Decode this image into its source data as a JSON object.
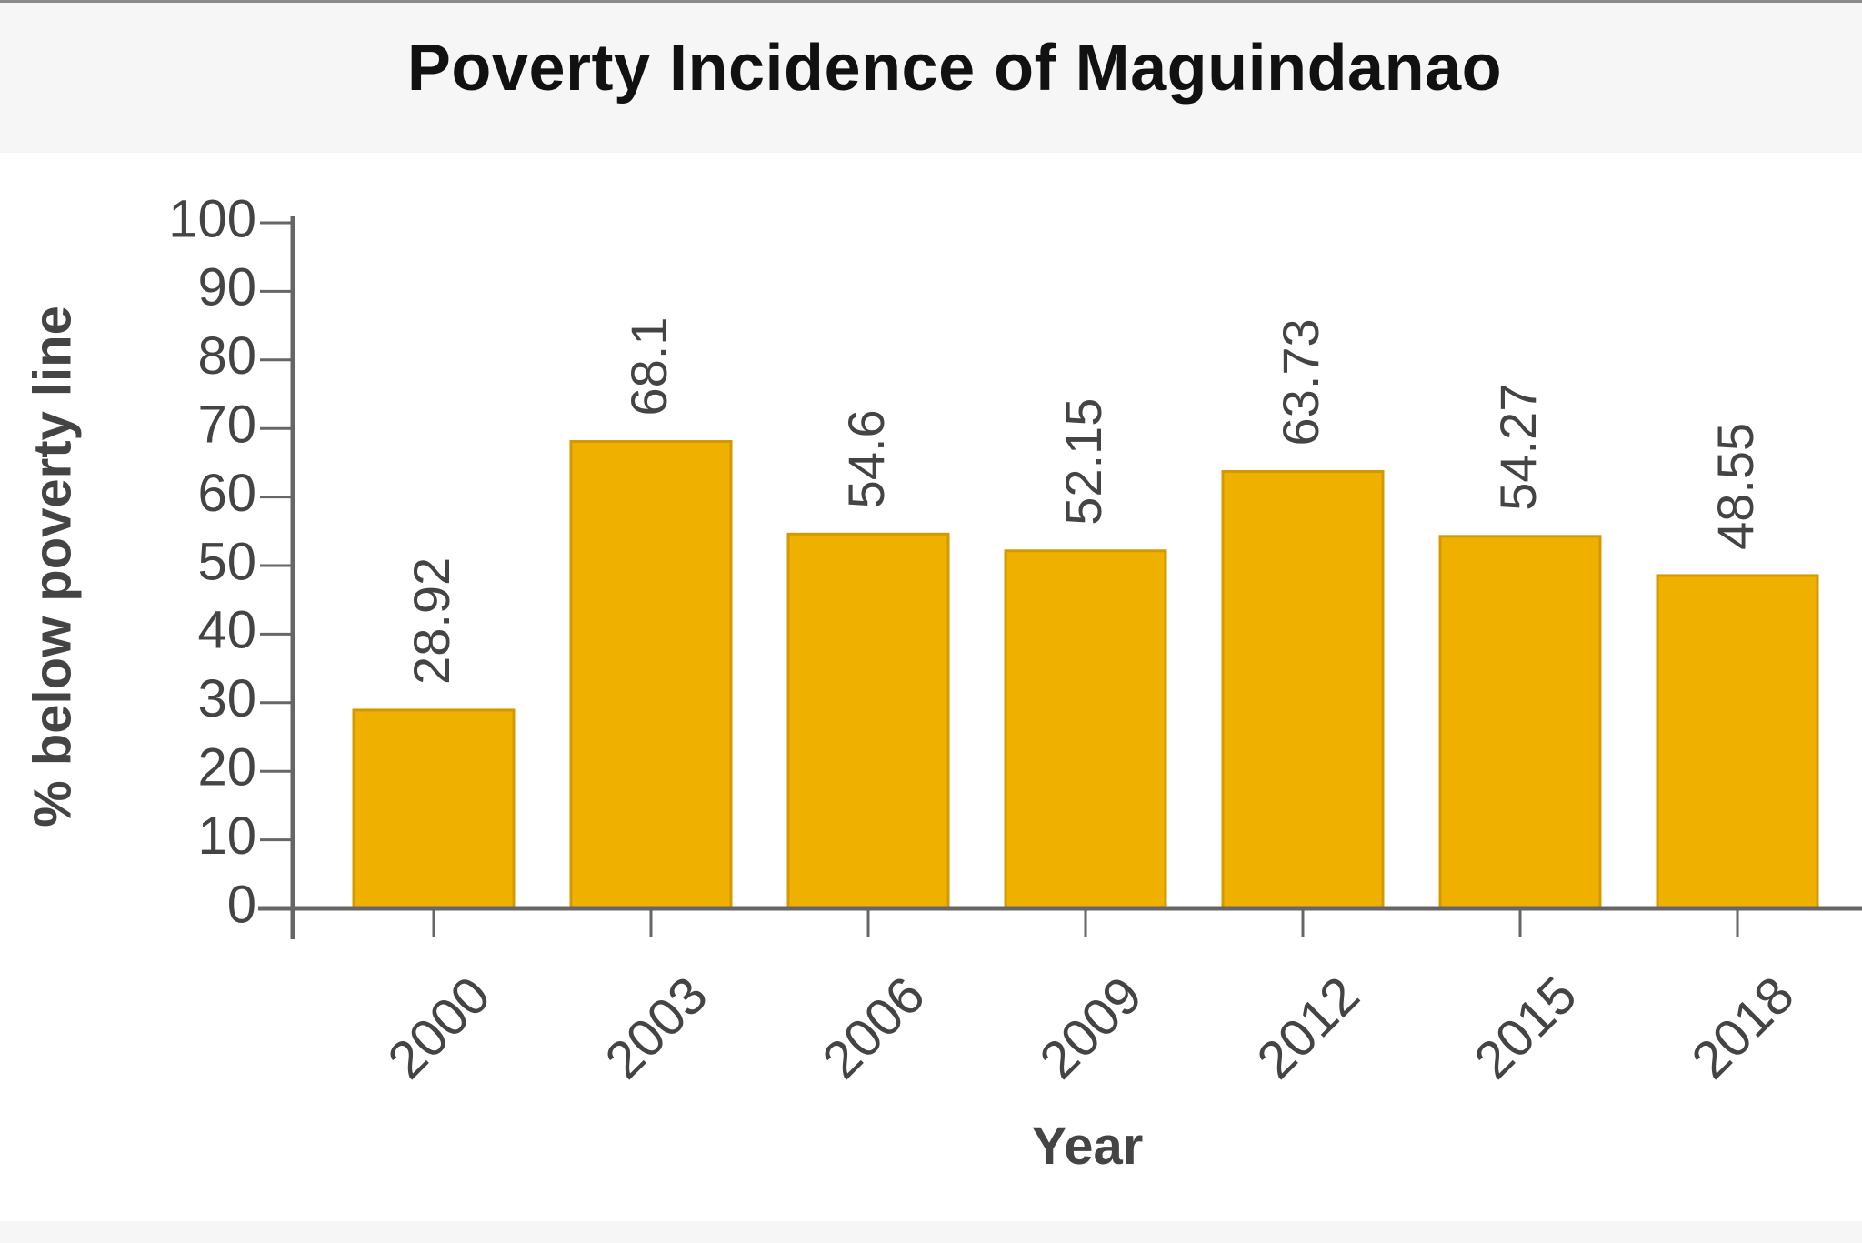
{
  "chart_data": {
    "type": "bar",
    "title": "Poverty Incidence of Maguindanao",
    "xlabel": "Year",
    "ylabel": "% below poverty line",
    "categories": [
      "2000",
      "2003",
      "2006",
      "2009",
      "2012",
      "2015",
      "2018"
    ],
    "values": [
      28.92,
      68.1,
      54.6,
      52.15,
      63.73,
      54.27,
      48.55
    ],
    "value_labels": [
      "28.92",
      "68.1",
      "54.6",
      "52.15",
      "63.73",
      "54.27",
      "48.55"
    ],
    "ylim": [
      0,
      100
    ],
    "yticks": [
      "0",
      "10",
      "20",
      "30",
      "40",
      "50",
      "60",
      "70",
      "80",
      "90",
      "100"
    ],
    "grid": false,
    "legend": "none",
    "colors": {
      "bar": "#f0b000",
      "bar_edge": "#d29a00",
      "axis": "#666666",
      "tick_text": "#444444",
      "title_text": "#111111"
    }
  }
}
